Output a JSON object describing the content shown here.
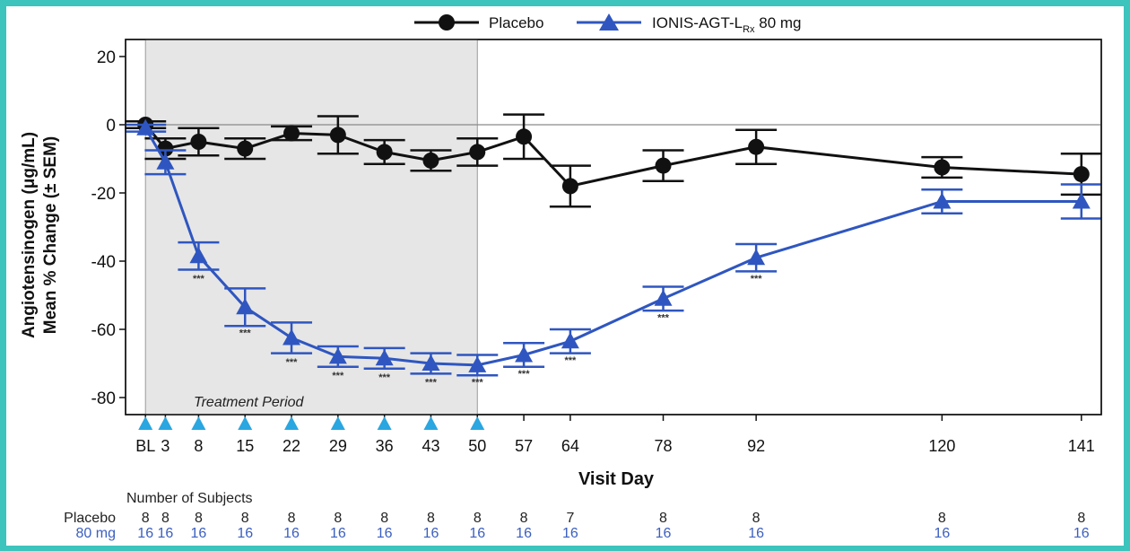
{
  "chart_data": {
    "type": "line",
    "xlabel": "Visit Day",
    "ylabel_line1": "Angiotensinogen (μg/mL)",
    "ylabel_line2": "Mean % Change (± SEM)",
    "ylim": [
      -85,
      25
    ],
    "yticks": [
      20,
      0,
      -20,
      -40,
      -60,
      -80
    ],
    "x_positions": [
      "BL",
      "3",
      "8",
      "15",
      "22",
      "29",
      "36",
      "43",
      "50",
      "57",
      "64",
      "78",
      "92",
      "120",
      "141"
    ],
    "x_tick_labels": [
      "BL",
      "3",
      "8",
      "15",
      "22",
      "29",
      "36",
      "43",
      "50",
      "57",
      "64",
      "78",
      "92",
      "120",
      "141"
    ],
    "x_values": [
      0,
      3,
      8,
      15,
      22,
      29,
      36,
      43,
      50,
      57,
      64,
      78,
      92,
      120,
      141
    ],
    "x_domain": [
      -3,
      144
    ],
    "shaded_region": {
      "from_day": 0,
      "to_day": 50,
      "label": "Treatment Period"
    },
    "dose_markers_days": [
      0,
      3,
      8,
      15,
      22,
      29,
      36,
      43,
      50
    ],
    "dose_marker_color": "#2aa6e0",
    "series": [
      {
        "name": "Placebo",
        "color": "#111111",
        "marker": "circle",
        "values": [
          0,
          -7,
          -5,
          -7,
          -2.5,
          -3,
          -8,
          -10.5,
          -8,
          -3.5,
          -18,
          -12,
          -6.5,
          -12.5,
          -14.5
        ],
        "sem": [
          1,
          3,
          4,
          3,
          2,
          5.5,
          3.5,
          3,
          4,
          6.5,
          6,
          4.5,
          5,
          3,
          6
        ]
      },
      {
        "name": "IONIS-AGT-L",
        "name_sub": "Rx",
        "name_suffix": " 80 mg",
        "color": "#2f56c0",
        "marker": "triangle",
        "values": [
          -1,
          -11,
          -38.5,
          -53.5,
          -62.5,
          -68,
          -68.5,
          -70,
          -70.5,
          -67.5,
          -63.5,
          -51,
          -39,
          -22.5,
          -22.5
        ],
        "sem": [
          1,
          3.5,
          4,
          5.5,
          4.5,
          3,
          3,
          3,
          3,
          3.5,
          3.5,
          3.5,
          4,
          3.5,
          5
        ]
      }
    ],
    "significance_marks": [
      {
        "day": 8,
        "y": -46,
        "text": "***"
      },
      {
        "day": 15,
        "y": -62,
        "text": "***"
      },
      {
        "day": 22,
        "y": -70.5,
        "text": "***"
      },
      {
        "day": 29,
        "y": -74.5,
        "text": "***"
      },
      {
        "day": 36,
        "y": -75,
        "text": "***"
      },
      {
        "day": 43,
        "y": -76.5,
        "text": "***"
      },
      {
        "day": 50,
        "y": -76.5,
        "text": "***"
      },
      {
        "day": 57,
        "y": -74,
        "text": "***"
      },
      {
        "day": 64,
        "y": -70,
        "text": "***"
      },
      {
        "day": 78,
        "y": -57.5,
        "text": "***"
      },
      {
        "day": 92,
        "y": -46,
        "text": "***"
      }
    ],
    "subjects": {
      "title": "Number of Subjects",
      "rows": [
        {
          "label": "Placebo",
          "color": "#222222",
          "days": [
            0,
            3,
            8,
            15,
            22,
            29,
            36,
            43,
            50,
            57,
            64,
            78,
            92,
            120,
            141
          ],
          "counts": [
            "8",
            "8",
            "8",
            "8",
            "8",
            "8",
            "8",
            "8",
            "8",
            "8",
            "7",
            "8",
            "8",
            "8",
            "8"
          ]
        },
        {
          "label": "80 mg",
          "color": "#3b5fc0",
          "days": [
            0,
            3,
            8,
            15,
            22,
            29,
            36,
            43,
            50,
            57,
            64,
            78,
            92,
            120,
            141
          ],
          "counts": [
            "16",
            "16",
            "16",
            "16",
            "16",
            "16",
            "16",
            "16",
            "16",
            "16",
            "16",
            "16",
            "16",
            "16",
            "16"
          ]
        }
      ]
    }
  }
}
